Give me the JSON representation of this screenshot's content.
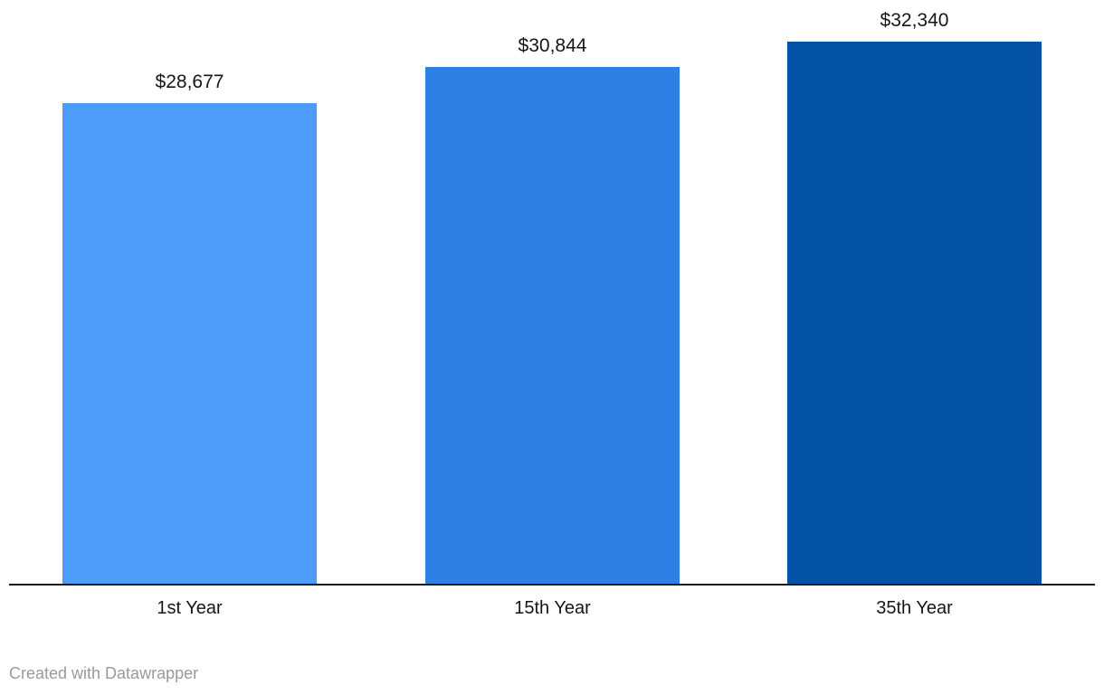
{
  "chart_data": {
    "type": "bar",
    "title": "",
    "xlabel": "",
    "ylabel": "",
    "categories": [
      "1st Year",
      "15th Year",
      "35th Year"
    ],
    "values": [
      28677,
      30844,
      32340
    ],
    "value_labels": [
      "$28,677",
      "$30,844",
      "$32,340"
    ],
    "series_colors": [
      "#4E9CFA",
      "#2F80E4",
      "#0452A8"
    ],
    "ylim": [
      0,
      32340
    ],
    "grid": false,
    "legend": "none",
    "baseline": 0,
    "axis_line_color": "#1a1a1a",
    "label_color": "#161616"
  },
  "footer": {
    "attribution": "Created with Datawrapper",
    "color": "#9a9a9a"
  }
}
